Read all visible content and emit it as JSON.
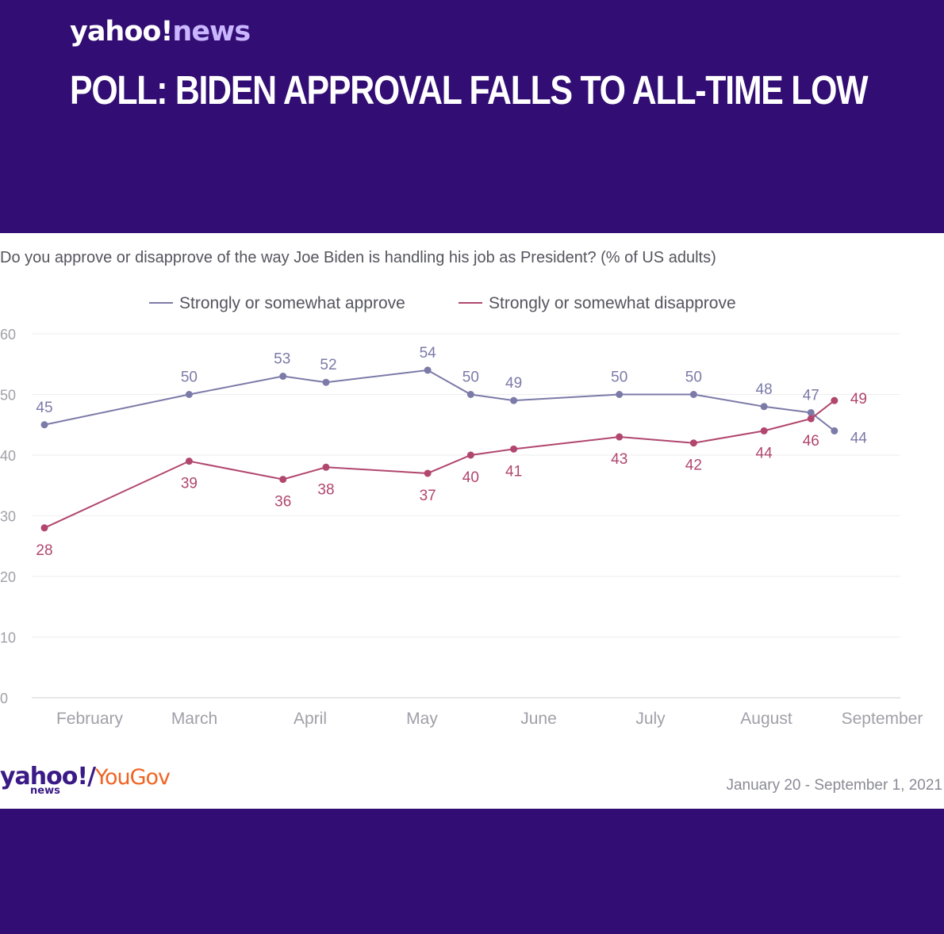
{
  "header": {
    "brand_main": "yahoo!",
    "brand_news": "news",
    "headline": "POLL: BIDEN APPROVAL FALLS TO ALL-TIME LOW"
  },
  "colors": {
    "background": "#320d73",
    "approve": "#7b7aa8",
    "disapprove": "#b1466e",
    "axis_text": "#a0a0a8",
    "grid": "#eeeeee"
  },
  "chart_data": {
    "type": "line",
    "title": "Do you approve or disapprove of the way Joe Biden is handling his job as President? (% of US adults)",
    "xlabel": "",
    "ylabel": "",
    "ylim": [
      0,
      60
    ],
    "yticks": [
      0,
      10,
      20,
      30,
      40,
      50,
      60
    ],
    "grid": true,
    "legend_position": "top",
    "month_labels": [
      "February",
      "March",
      "April",
      "May",
      "June",
      "July",
      "August",
      "September"
    ],
    "x": [
      "2021-01-24",
      "2021-03-02",
      "2021-03-26",
      "2021-04-06",
      "2021-05-02",
      "2021-05-13",
      "2021-05-24",
      "2021-06-20",
      "2021-07-09",
      "2021-07-27",
      "2021-08-08",
      "2021-08-14"
    ],
    "series": [
      {
        "name": "Strongly or somewhat approve",
        "values": [
          45,
          50,
          53,
          52,
          54,
          50,
          49,
          50,
          50,
          48,
          47,
          44
        ]
      },
      {
        "name": "Strongly or somewhat disapprove",
        "values": [
          28,
          39,
          36,
          38,
          37,
          40,
          41,
          43,
          42,
          44,
          46,
          49
        ]
      }
    ]
  },
  "footer": {
    "logo_yahoo": "yahoo!",
    "logo_slash": "/",
    "logo_yougov": "YouGov",
    "logo_news": "news",
    "date_range": "January 20 - September 1, 2021"
  }
}
